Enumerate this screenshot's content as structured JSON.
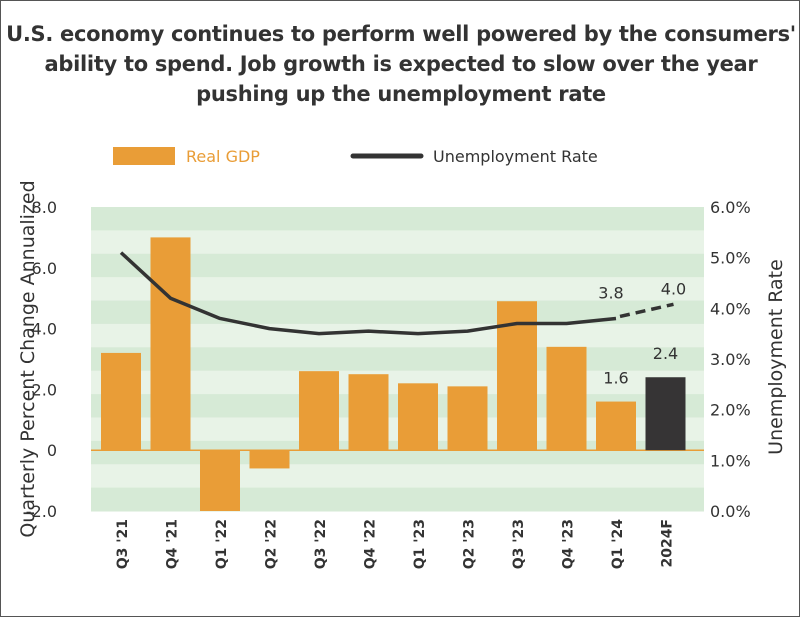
{
  "chart_data": {
    "type": "bar",
    "title": "U.S. economy continues to perform well powered by the consumers' ability to spend. Job growth is expected to slow over the year pushing up the unemployment rate",
    "categories": [
      "Q3 '21",
      "Q4 '21",
      "Q1 '22",
      "Q2 '22",
      "Q3 '22",
      "Q4 '22",
      "Q1 '23",
      "Q2 '23",
      "Q3 '23",
      "Q4 '23",
      "Q1 '24",
      "2024F"
    ],
    "series": [
      {
        "name": "Real GDP",
        "type": "bar",
        "axis": "left",
        "color": "#E99D37",
        "forecast_color": "#363435",
        "values": [
          3.2,
          7.0,
          -2.0,
          -0.6,
          2.6,
          2.5,
          2.2,
          2.1,
          4.9,
          3.4,
          1.6,
          2.4
        ]
      },
      {
        "name": "Unemployment Rate",
        "type": "line",
        "axis": "right",
        "color": "#333333",
        "forecast_style": "dashed",
        "values": [
          5.1,
          4.2,
          3.8,
          3.6,
          3.5,
          3.55,
          3.5,
          3.55,
          3.7,
          3.7,
          3.8,
          4.0
        ]
      }
    ],
    "data_labels": [
      {
        "series": "Real GDP",
        "category": "Q1 '24",
        "text": "1.6"
      },
      {
        "series": "Real GDP",
        "category": "2024F",
        "text": "2.4"
      },
      {
        "series": "Unemployment Rate",
        "category": "Q1 '24",
        "text": "3.8"
      },
      {
        "series": "Unemployment Rate",
        "category": "2024F",
        "text": "4.0"
      }
    ],
    "ylabel": "Quarterly Percent Change Annualized",
    "ylabel_right": "Unemployment Rate",
    "ylim": [
      -2.0,
      8.0
    ],
    "ylim_right": [
      0,
      6
    ],
    "yticks": [
      "8.0",
      "6.0",
      "4.0",
      "2.0",
      "0",
      "-2.0"
    ],
    "yticks_right": [
      "6.0%",
      "5.0%",
      "4.0%",
      "3.0%",
      "2.0%",
      "1.0%",
      "0.0%"
    ],
    "grid": "alternating horizontal green bands",
    "band_colors": [
      "#d6ead6",
      "#e8f3e7"
    ],
    "legend_placement": "top"
  }
}
